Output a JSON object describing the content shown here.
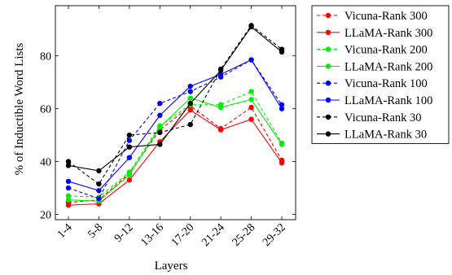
{
  "chart_data": {
    "type": "line",
    "title": "",
    "xlabel": "Layers",
    "ylabel": "% of Inductible Word Lists",
    "categories": [
      "1-4",
      "5-8",
      "9-12",
      "13-16",
      "17-20",
      "21-24",
      "25-28",
      "29-32"
    ],
    "ylim": [
      18,
      99
    ],
    "yticks": [
      20,
      40,
      60,
      80
    ],
    "grid": false,
    "legend_position": "right",
    "series": [
      {
        "name": "Vicuna-Rank 300",
        "color": "#ff0000",
        "dashed": true,
        "values": [
          24.5,
          25.5,
          35.5,
          52.0,
          61.0,
          52.5,
          60.5,
          40.5
        ]
      },
      {
        "name": "LLaMA-Rank 300",
        "color": "#ff0000",
        "dashed": false,
        "values": [
          23.5,
          24.0,
          33.0,
          47.5,
          59.5,
          52.0,
          56.0,
          39.5
        ]
      },
      {
        "name": "Vicuna-Rank 200",
        "color": "#00ee00",
        "dashed": true,
        "values": [
          27.0,
          26.5,
          36.0,
          53.5,
          61.5,
          61.5,
          66.5,
          47.0
        ]
      },
      {
        "name": "LLaMA-Rank 200",
        "color": "#00ee00",
        "dashed": false,
        "values": [
          25.5,
          25.0,
          35.0,
          53.0,
          64.0,
          60.5,
          63.5,
          46.5
        ]
      },
      {
        "name": "Vicuna-Rank 100",
        "color": "#0000ff",
        "dashed": true,
        "values": [
          30.0,
          26.0,
          48.0,
          62.0,
          66.5,
          72.0,
          78.5,
          61.5
        ]
      },
      {
        "name": "LLaMA-Rank 100",
        "color": "#0000ff",
        "dashed": false,
        "values": [
          32.5,
          29.0,
          41.5,
          57.5,
          68.5,
          73.0,
          78.5,
          60.0
        ]
      },
      {
        "name": "Vicuna-Rank 30",
        "color": "#000000",
        "dashed": true,
        "values": [
          40.0,
          31.5,
          50.0,
          51.0,
          54.0,
          75.0,
          91.5,
          82.5
        ]
      },
      {
        "name": "LLaMA-Rank 30",
        "color": "#000000",
        "dashed": false,
        "values": [
          38.5,
          36.5,
          45.5,
          46.5,
          62.0,
          74.5,
          91.0,
          81.5
        ]
      }
    ]
  }
}
